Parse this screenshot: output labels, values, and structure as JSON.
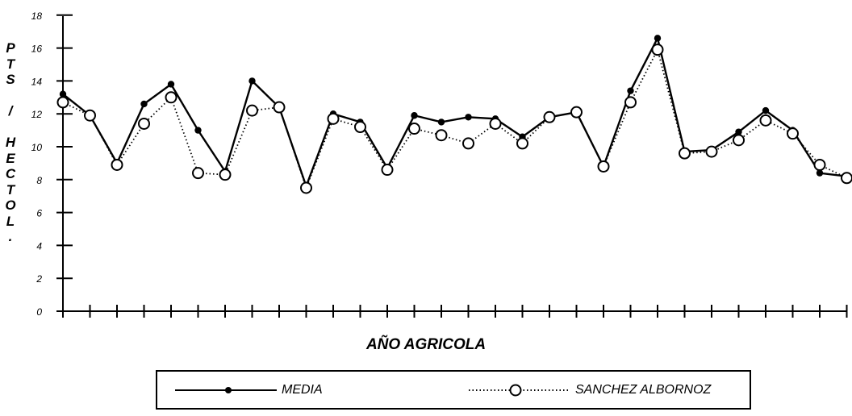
{
  "chart_data": {
    "type": "line",
    "ylabel": "PTS / HECTOL.",
    "xlabel": "AÑO AGRICOLA",
    "ylim": [
      0,
      18
    ],
    "yticks": [
      0,
      2,
      4,
      6,
      8,
      10,
      12,
      14,
      16,
      18
    ],
    "grid": false,
    "legend_position": "bottom",
    "series": [
      {
        "name": "MEDIA",
        "color": "#000000",
        "line_style": "solid",
        "marker": "filled-dot",
        "values": [
          13.2,
          11.9,
          9.0,
          12.6,
          13.8,
          11.0,
          8.5,
          14.0,
          12.4,
          7.6,
          12.0,
          11.5,
          8.7,
          11.9,
          11.5,
          11.8,
          11.7,
          10.6,
          11.8,
          12.1,
          8.8,
          13.4,
          16.6,
          9.7,
          9.8,
          10.9,
          12.2,
          11.0,
          8.4,
          8.2
        ]
      },
      {
        "name": "SANCHEZ ALBORNOZ",
        "color": "#000000",
        "line_style": "dotted",
        "marker": "open-circle",
        "values": [
          12.7,
          11.9,
          8.9,
          11.4,
          13.0,
          8.4,
          8.3,
          12.2,
          12.4,
          7.5,
          11.7,
          11.2,
          8.6,
          11.1,
          10.7,
          10.2,
          11.4,
          10.2,
          11.8,
          12.1,
          8.8,
          12.7,
          15.9,
          9.6,
          9.7,
          10.4,
          11.6,
          10.8,
          8.9,
          8.1
        ]
      }
    ]
  },
  "legend": {
    "media_label": "MEDIA",
    "sanchez_label": "SANCHEZ ALBORNOZ"
  }
}
